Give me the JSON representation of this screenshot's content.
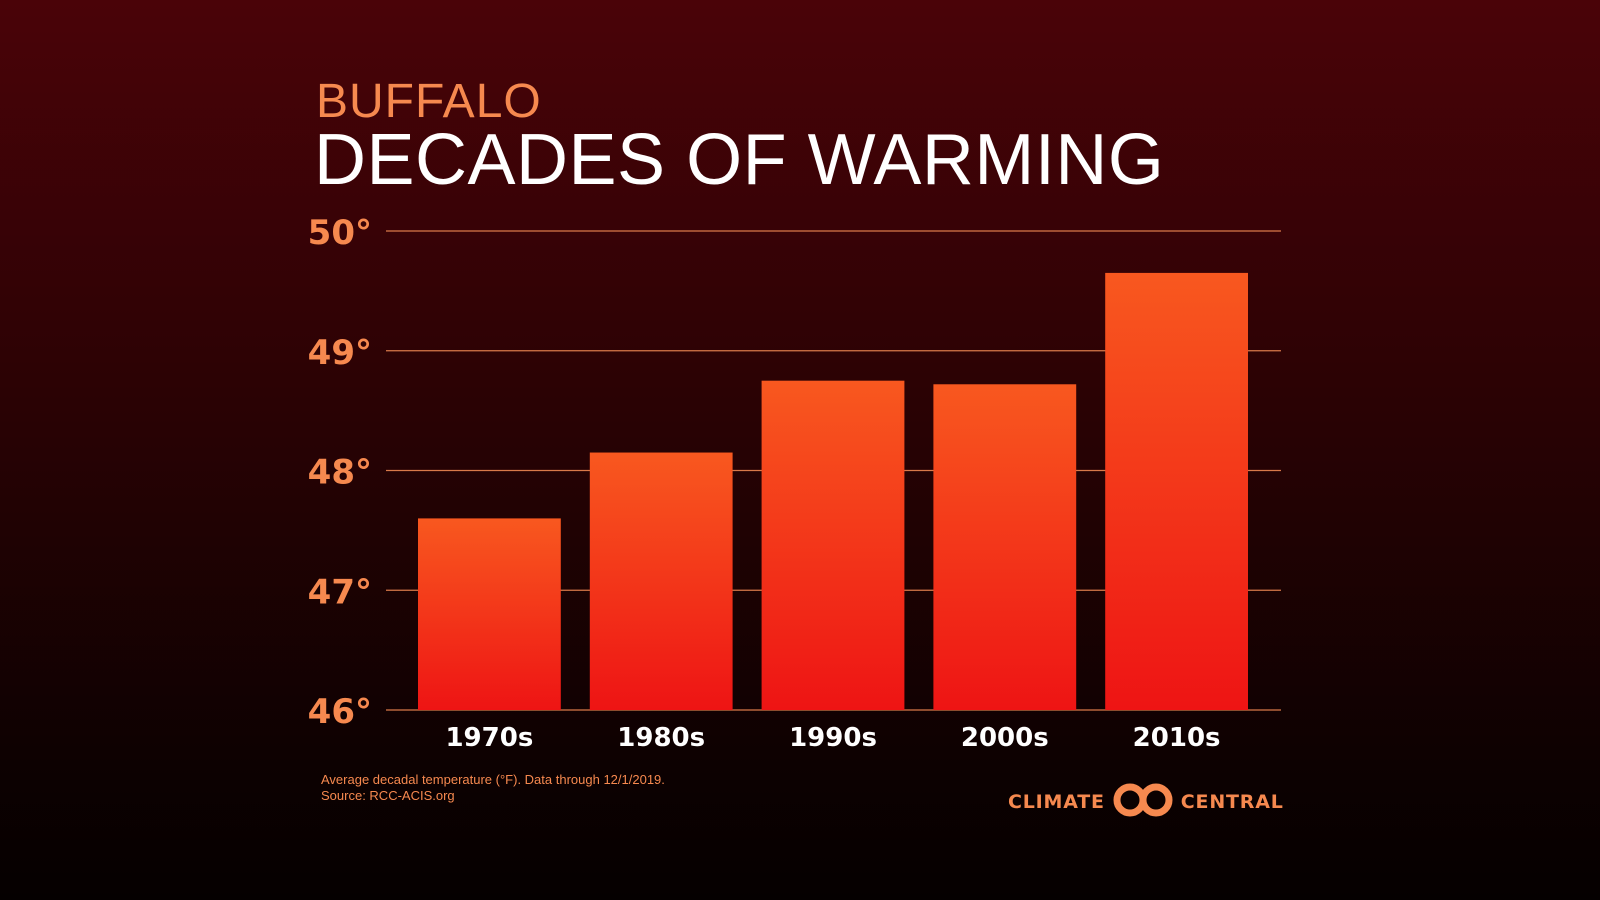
{
  "header": {
    "city": "BUFFALO",
    "title": "DECADES OF WARMING"
  },
  "footnote": {
    "line1": "Average decadal temperature (°F). Data through 12/1/2019.",
    "line2": "Source: RCC-ACIS.org"
  },
  "logo": {
    "left_text": "CLIMATE",
    "right_text": "CENTRAL"
  },
  "colors": {
    "accent": "#f6894f",
    "bar_top": "#f8581f",
    "bar_bottom": "#ee1414",
    "gridline": "#d97a4a"
  },
  "chart_data": {
    "type": "bar",
    "title": "DECADES OF WARMING",
    "subtitle": "BUFFALO",
    "xlabel": "",
    "ylabel": "Average decadal temperature (°F)",
    "categories": [
      "1970s",
      "1980s",
      "1990s",
      "2000s",
      "2010s"
    ],
    "values": [
      47.6,
      48.15,
      48.75,
      48.72,
      49.65
    ],
    "ylim": [
      46,
      50
    ],
    "yticks": [
      46,
      47,
      48,
      49,
      50
    ],
    "ytick_labels": [
      "46°",
      "47°",
      "48°",
      "49°",
      "50°"
    ],
    "grid": true
  }
}
